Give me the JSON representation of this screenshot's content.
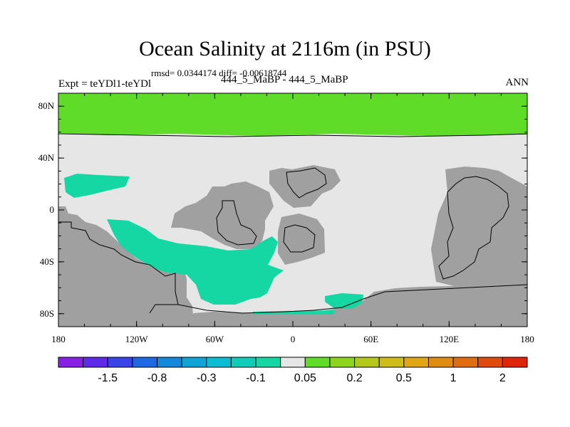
{
  "title": "Ocean Salinity at 2116m (in PSU)",
  "stats": "rmsd= 0.0344174 diff= -0.00618744",
  "expt": "Expt = teYDl1-teYDl",
  "cases": "444_5_MaBP - 444_5_MaBP",
  "season": "ANN",
  "map": {
    "lat_ticks": [
      {
        "value": 80,
        "label": "80N"
      },
      {
        "value": 40,
        "label": "40N"
      },
      {
        "value": 0,
        "label": "0"
      },
      {
        "value": -40,
        "label": "40S"
      },
      {
        "value": -80,
        "label": "80S"
      }
    ],
    "lon_ticks": [
      {
        "value": -180,
        "label": "180"
      },
      {
        "value": -120,
        "label": "120W"
      },
      {
        "value": -60,
        "label": "60W"
      },
      {
        "value": 0,
        "label": "0"
      },
      {
        "value": 60,
        "label": "60E"
      },
      {
        "value": 120,
        "label": "120E"
      },
      {
        "value": 180,
        "label": "180"
      }
    ],
    "colors": {
      "land": "#a0a0a0",
      "near_zero": "#e6e6e6",
      "positive_band": "#5fdc28",
      "negative_patch": "#14d7a3",
      "coast": "#000000"
    }
  },
  "colorbar": {
    "colors": [
      "#8a1fe6",
      "#5e2be8",
      "#3a44e6",
      "#1f68e3",
      "#1488dc",
      "#10a4d6",
      "#0bbdd3",
      "#10cdb7",
      "#14d7a3",
      "#e6e6e6",
      "#5fdc28",
      "#8ed31d",
      "#b3c81b",
      "#cfbc16",
      "#e0a614",
      "#e08c12",
      "#e06e10",
      "#e04a0c",
      "#e0260a"
    ],
    "labels": [
      {
        "index": 1,
        "label": "-1.5"
      },
      {
        "index": 3,
        "label": "-0.8"
      },
      {
        "index": 5,
        "label": "-0.3"
      },
      {
        "index": 7,
        "label": "-0.1"
      },
      {
        "index": 9,
        "label": "0.05"
      },
      {
        "index": 11,
        "label": "0.2"
      },
      {
        "index": 13,
        "label": "0.5"
      },
      {
        "index": 15,
        "label": "1"
      },
      {
        "index": 17,
        "label": "2"
      }
    ]
  }
}
